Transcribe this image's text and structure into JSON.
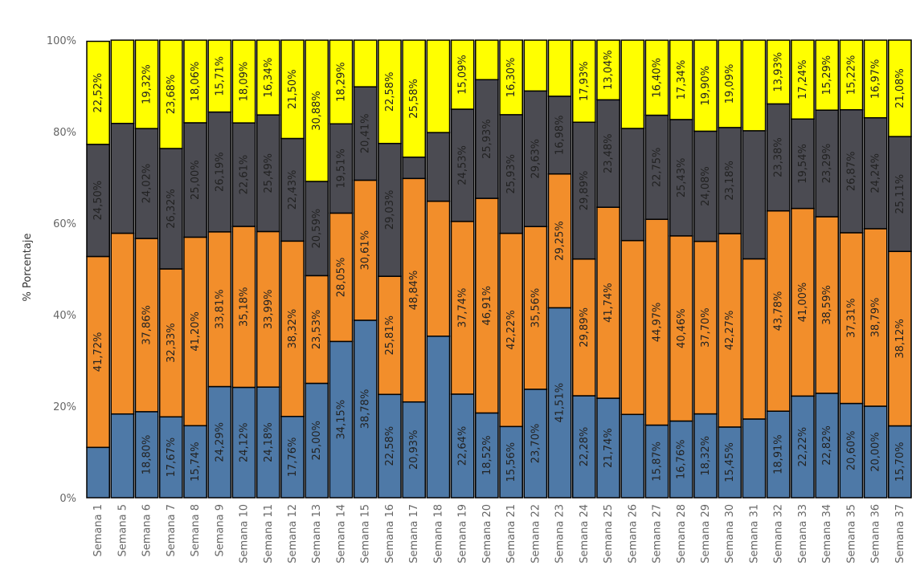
{
  "chart_data": {
    "type": "bar",
    "stacked": true,
    "percent": true,
    "ylabel": "% Porcentaje",
    "ylim": [
      0,
      100
    ],
    "yticks": [
      "0%",
      "20%",
      "40%",
      "60%",
      "80%",
      "100%"
    ],
    "grid": false,
    "categories": [
      "Semana 1",
      "Semana 5",
      "Semana 6",
      "Semana 7",
      "Semana 8",
      "Semana 9",
      "Semana 10",
      "Semana 11",
      "Semana 12",
      "Semana 13",
      "Semana 14",
      "Semana 15",
      "Semana 16",
      "Semana 17",
      "Semana 18",
      "Semana 19",
      "Semana 20",
      "Semana 21",
      "Semana 22",
      "Semana 23",
      "Semana 24",
      "Semana 25",
      "Semana 26",
      "Semana 27",
      "Semana 28",
      "Semana 29",
      "Semana 30",
      "Semana 31",
      "Semana 32",
      "Semana 33",
      "Semana 34",
      "Semana 35",
      "Semana 36",
      "Semana 37"
    ],
    "series": [
      {
        "color": "#4e79a7",
        "values": [
          11.0,
          18.3,
          18.8,
          17.67,
          15.74,
          24.29,
          24.12,
          24.18,
          17.76,
          25.0,
          34.15,
          38.78,
          22.58,
          20.93,
          35.3,
          22.64,
          18.52,
          15.56,
          23.7,
          41.51,
          22.28,
          21.74,
          18.2,
          15.87,
          16.76,
          18.32,
          15.45,
          17.2,
          18.91,
          22.22,
          22.82,
          20.6,
          20.0,
          15.7
        ],
        "labels": [
          "",
          "",
          "18,80%",
          "17,67%",
          "15,74%",
          "24,29%",
          "24,12%",
          "24,18%",
          "17,76%",
          "25,00%",
          "34,15%",
          "38,78%",
          "22,58%",
          "20,93%",
          "",
          "22,64%",
          "18,52%",
          "15,56%",
          "23,70%",
          "41,51%",
          "22,28%",
          "21,74%",
          "",
          "15,87%",
          "16,76%",
          "18,32%",
          "15,45%",
          "",
          "18,91%",
          "22,22%",
          "22,82%",
          "20,60%",
          "20,00%",
          "15,70%"
        ]
      },
      {
        "color": "#f28e2b",
        "values": [
          41.72,
          39.5,
          37.86,
          32.33,
          41.2,
          33.81,
          35.18,
          33.99,
          38.32,
          23.53,
          28.05,
          30.61,
          25.81,
          48.84,
          29.5,
          37.74,
          46.91,
          42.22,
          35.56,
          29.25,
          29.89,
          41.74,
          38.0,
          44.97,
          40.46,
          37.7,
          42.27,
          35.0,
          43.78,
          41.0,
          38.59,
          37.31,
          38.79,
          38.12
        ],
        "labels": [
          "41,72%",
          "",
          "37,86%",
          "32,33%",
          "41,20%",
          "33,81%",
          "35,18%",
          "33,99%",
          "38,32%",
          "23,53%",
          "28,05%",
          "30,61%",
          "25,81%",
          "48,84%",
          "",
          "37,74%",
          "46,91%",
          "42,22%",
          "35,56%",
          "29,25%",
          "29,89%",
          "41,74%",
          "",
          "44,97%",
          "40,46%",
          "37,70%",
          "42,27%",
          "",
          "43,78%",
          "41,00%",
          "38,59%",
          "37,31%",
          "38,79%",
          "38,12%"
        ]
      },
      {
        "color": "#4b4b52",
        "values": [
          24.5,
          24.0,
          24.02,
          26.32,
          25.0,
          26.19,
          22.61,
          25.49,
          22.43,
          20.59,
          19.51,
          20.41,
          29.03,
          4.65,
          15.0,
          24.53,
          25.93,
          25.93,
          29.63,
          16.98,
          29.89,
          23.48,
          24.5,
          22.75,
          25.43,
          24.08,
          23.18,
          28.0,
          23.38,
          19.54,
          23.29,
          26.87,
          24.24,
          25.11
        ],
        "labels": [
          "24,50%",
          "",
          "24,02%",
          "26,32%",
          "25,00%",
          "26,19%",
          "22,61%",
          "25,49%",
          "22,43%",
          "20,59%",
          "19,51%",
          "20,41%",
          "29,03%",
          "",
          "",
          "24,53%",
          "25,93%",
          "25,93%",
          "29,63%",
          "16,98%",
          "29,89%",
          "23,48%",
          "",
          "22,75%",
          "25,43%",
          "24,08%",
          "23,18%",
          "",
          "23,38%",
          "19,54%",
          "23,29%",
          "26,87%",
          "24,24%",
          "25,11%"
        ]
      },
      {
        "color": "#ffff00",
        "values": [
          22.52,
          18.2,
          19.32,
          23.68,
          18.06,
          15.71,
          18.09,
          16.34,
          21.5,
          30.88,
          18.29,
          10.2,
          22.58,
          25.58,
          20.2,
          15.09,
          8.64,
          16.3,
          11.11,
          12.26,
          17.93,
          13.04,
          19.3,
          16.4,
          17.34,
          19.9,
          19.09,
          19.8,
          13.93,
          17.24,
          15.29,
          15.22,
          16.97,
          21.08
        ],
        "labels": [
          "22,52%",
          "",
          "19,32%",
          "23,68%",
          "18,06%",
          "15,71%",
          "18,09%",
          "16,34%",
          "21,50%",
          "30,88%",
          "18,29%",
          "",
          "22,58%",
          "25,58%",
          "",
          "15,09%",
          "",
          "16,30%",
          "",
          "",
          "17,93%",
          "13,04%",
          "",
          "16,40%",
          "17,34%",
          "19,90%",
          "19,09%",
          "",
          "13,93%",
          "17,24%",
          "15,29%",
          "15,22%",
          "16,97%",
          "21,08%"
        ]
      }
    ]
  }
}
